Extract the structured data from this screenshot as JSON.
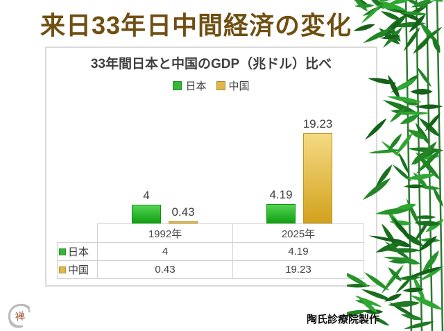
{
  "slide": {
    "title": "来日33年日中間経済の変化",
    "title_color": "#6f4f12",
    "credit": "陶氏診療院製作",
    "logo_glyph": "禅"
  },
  "chart_data": {
    "type": "bar",
    "title": "33年間日本と中国のGDP（兆ドル）比べ",
    "categories": [
      "1992年",
      "2025年"
    ],
    "series": [
      {
        "key": "japan",
        "name": "日本",
        "values": [
          4,
          4.19
        ],
        "display": [
          "4",
          "4.19"
        ],
        "swatch": "#35b835",
        "grad_top": "#55d455",
        "grad_bottom": "#10a010",
        "border": "#0e940e"
      },
      {
        "key": "china",
        "name": "中国",
        "values": [
          0.43,
          19.23
        ],
        "display": [
          "0.43",
          "19.23"
        ],
        "swatch": "#e2b747",
        "grad_top": "#f5da82",
        "grad_bottom": "#d2a21e",
        "border": "#c3931a"
      }
    ],
    "ylim": [
      0,
      20
    ],
    "grid": false,
    "legend_position": "top",
    "data_table": true,
    "value_label_color": "#3f3f3f",
    "text_color": "#3f3f3f"
  },
  "decoration": {
    "bamboo_greens": [
      "#15611a",
      "#1e7a22",
      "#27932b",
      "#2fa733",
      "#1a6f1e",
      "#248527"
    ],
    "logo_swirl_color": "#bababa",
    "logo_glyph_color": "#9c4f2b"
  }
}
